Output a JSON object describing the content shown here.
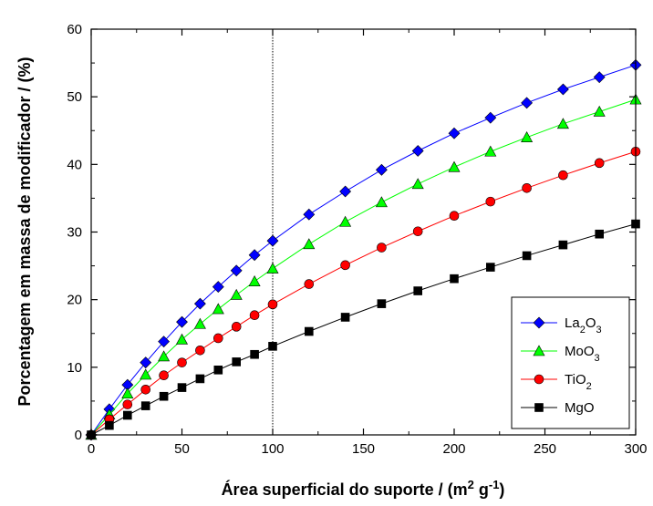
{
  "chart_data": {
    "type": "line",
    "xlabel": "Área superficial do suporte / (m² g⁻¹)",
    "ylabel": "Porcentagem em massa de modificador / (%)",
    "xlim": [
      0,
      300
    ],
    "ylim": [
      0,
      60
    ],
    "xticks": [
      0,
      50,
      100,
      150,
      200,
      250,
      300
    ],
    "yticks": [
      0,
      10,
      20,
      30,
      40,
      50,
      60
    ],
    "reference_line_x": 100,
    "legend_position": "bottom-right",
    "x": [
      0,
      10,
      20,
      30,
      40,
      50,
      60,
      70,
      80,
      90,
      100,
      120,
      140,
      160,
      180,
      200,
      220,
      240,
      260,
      280,
      300
    ],
    "series": [
      {
        "name": "La₂O₃",
        "marker": "diamond",
        "color": "#0000ff",
        "values": [
          0,
          3.8,
          7.4,
          10.7,
          13.8,
          16.7,
          19.4,
          21.9,
          24.3,
          26.6,
          28.7,
          32.6,
          36.0,
          39.2,
          42.0,
          44.6,
          46.9,
          49.1,
          51.1,
          52.9,
          54.7
        ]
      },
      {
        "name": "MoO₃",
        "marker": "triangle",
        "color": "#00ff00",
        "values": [
          0,
          3.0,
          6.1,
          8.9,
          11.6,
          14.1,
          16.4,
          18.6,
          20.7,
          22.7,
          24.6,
          28.2,
          31.5,
          34.4,
          37.1,
          39.6,
          41.9,
          44.0,
          46.0,
          47.8,
          49.6
        ]
      },
      {
        "name": "TiO₂",
        "marker": "circle",
        "color": "#ff0000",
        "values": [
          0,
          2.3,
          4.5,
          6.7,
          8.8,
          10.7,
          12.5,
          14.3,
          16.0,
          17.7,
          19.3,
          22.3,
          25.1,
          27.7,
          30.1,
          32.4,
          34.5,
          36.5,
          38.4,
          40.2,
          41.9
        ]
      },
      {
        "name": "MgO",
        "marker": "square",
        "color": "#000000",
        "values": [
          0,
          1.4,
          2.9,
          4.3,
          5.7,
          7.0,
          8.3,
          9.6,
          10.8,
          11.9,
          13.1,
          15.3,
          17.4,
          19.4,
          21.3,
          23.1,
          24.8,
          26.5,
          28.1,
          29.7,
          31.2
        ]
      }
    ]
  }
}
